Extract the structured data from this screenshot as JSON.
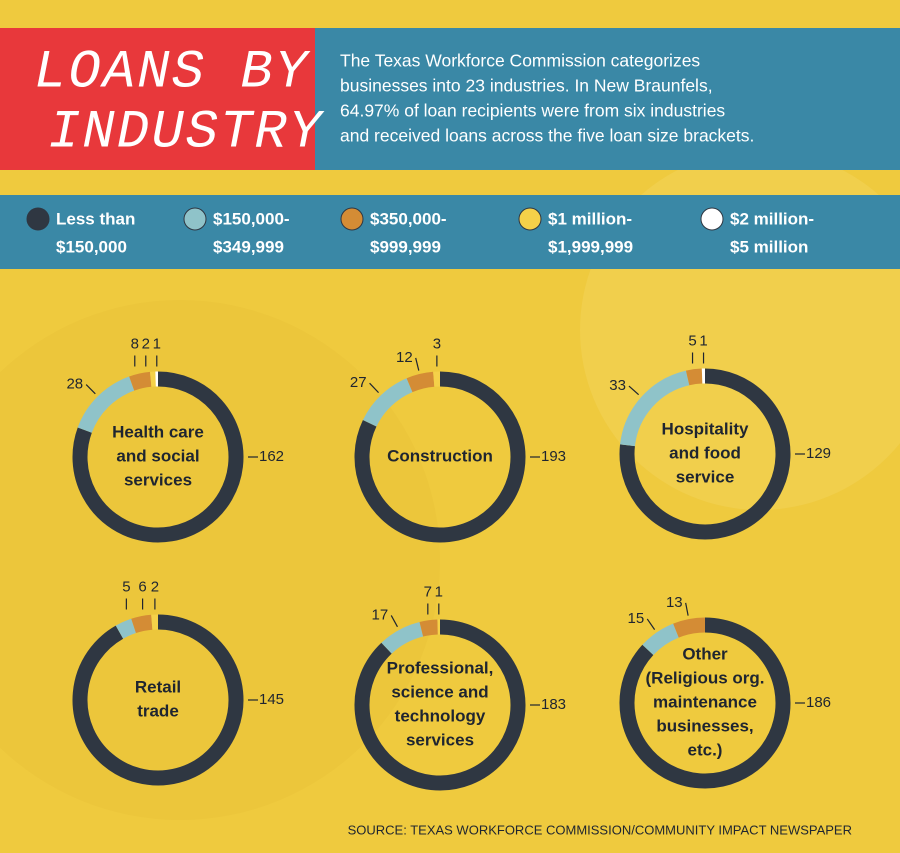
{
  "header": {
    "title": [
      "LOANS BY",
      "INDUSTRY"
    ],
    "description": [
      "The Texas Workforce Commission categorizes",
      "businesses into 23 industries. In New Braunfels,",
      "64.97% of loan recipients were from six industries",
      "and received loans across the five loan size brackets."
    ]
  },
  "legend": [
    {
      "label": [
        "Less than",
        "$150,000"
      ],
      "color": "#2f3742"
    },
    {
      "label": [
        "$150,000-",
        "$349,999"
      ],
      "color": "#8fc3c9"
    },
    {
      "label": [
        "$350,000-",
        "$999,999"
      ],
      "color": "#d48c35"
    },
    {
      "label": [
        "$1 million-",
        "$1,999,999"
      ],
      "color": "#f5d149"
    },
    {
      "label": [
        "$2 million-",
        "$5 million"
      ],
      "color": "#ffffff"
    }
  ],
  "chart_data": [
    {
      "type": "donut",
      "title": [
        "Health care",
        "and social",
        "services"
      ],
      "values": [
        162,
        28,
        8,
        2,
        1
      ]
    },
    {
      "type": "donut",
      "title": [
        "Construction"
      ],
      "values": [
        193,
        27,
        12,
        3,
        null
      ]
    },
    {
      "type": "donut",
      "title": [
        "Hospitality",
        "and food",
        "service"
      ],
      "values": [
        129,
        33,
        5,
        null,
        1
      ]
    },
    {
      "type": "donut",
      "title": [
        "Retail",
        "trade"
      ],
      "values": [
        145,
        5,
        6,
        2,
        null
      ]
    },
    {
      "type": "donut",
      "title": [
        "Professional,",
        "science and",
        "technology",
        "services"
      ],
      "values": [
        183,
        17,
        7,
        1,
        null
      ]
    },
    {
      "type": "donut",
      "title": [
        "Other",
        "(Religious org.",
        "maintenance",
        "businesses,",
        "etc.)"
      ],
      "values": [
        186,
        15,
        13,
        null,
        null
      ]
    }
  ],
  "source": "SOURCE: TEXAS WORKFORCE COMMISSION/COMMUNITY IMPACT NEWSPAPER"
}
